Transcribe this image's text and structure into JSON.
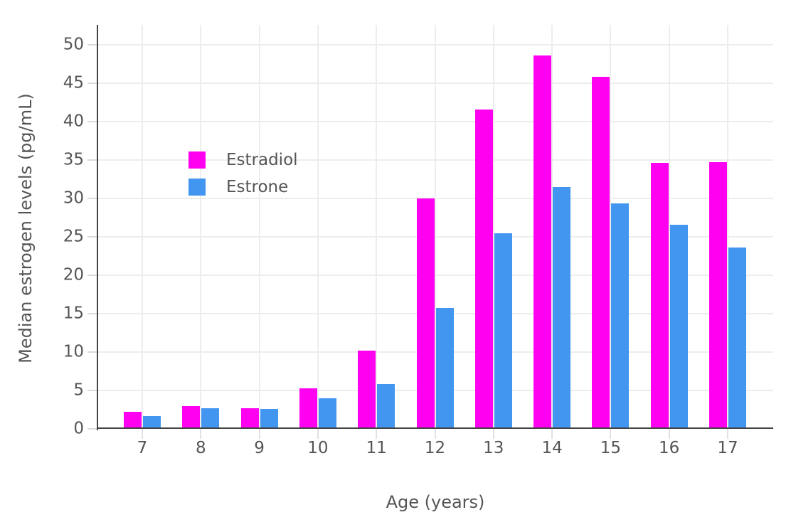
{
  "chart_data": {
    "type": "bar",
    "title": "",
    "xlabel": "Age (years)",
    "ylabel": "Median estrogen levels (pg/mL)",
    "categories": [
      "7",
      "8",
      "9",
      "10",
      "11",
      "12",
      "13",
      "14",
      "15",
      "16",
      "17"
    ],
    "series": [
      {
        "name": "Estradiol",
        "color": "#FF00F0",
        "values": [
          2.2,
          3.0,
          2.7,
          5.3,
          10.2,
          30.0,
          41.6,
          48.6,
          45.8,
          34.6,
          34.7
        ]
      },
      {
        "name": "Estrone",
        "color": "#4296F0",
        "values": [
          1.7,
          2.7,
          2.6,
          4.0,
          5.8,
          15.7,
          25.5,
          31.5,
          29.4,
          26.6,
          23.6
        ]
      }
    ],
    "yticks": [
      0,
      5,
      10,
      15,
      20,
      25,
      30,
      35,
      40,
      45,
      50
    ],
    "ylim": [
      0,
      52.6
    ],
    "grid": true,
    "legend_position": "inside-top-left",
    "background": "#ffffff",
    "gridline_color": "#ededed",
    "axis_line_color": "#444444",
    "text_color": "#555555"
  }
}
